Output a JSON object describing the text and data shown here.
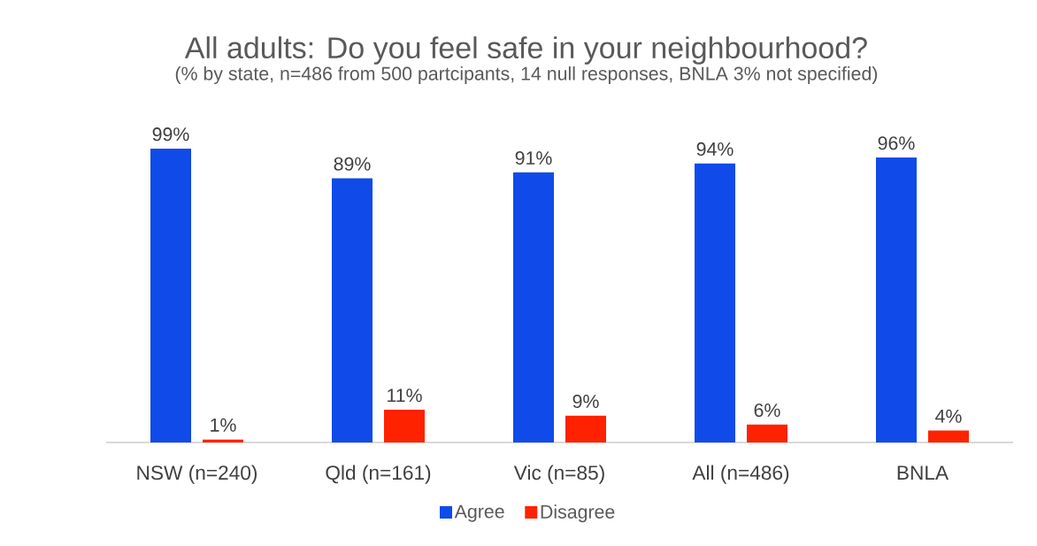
{
  "chart_data": {
    "type": "bar",
    "title": "All adults: Do you feel safe in your neighbourhood?",
    "subtitle": "(% by state, n=486 from 500 partcipants, 14 null responses, BNLA 3% not specified)",
    "categories": [
      "NSW (n=240)",
      "Qld (n=161)",
      "Vic (n=85)",
      "All (n=486)",
      "BNLA"
    ],
    "series": [
      {
        "name": "Agree",
        "color": "#104ae8",
        "values": [
          99,
          89,
          91,
          94,
          96
        ],
        "value_labels": [
          "99%",
          "89%",
          "91%",
          "94%",
          "96%"
        ]
      },
      {
        "name": "Disagree",
        "color": "#ff2200",
        "values": [
          1,
          11,
          9,
          6,
          4
        ],
        "value_labels": [
          "1%",
          "11%",
          "9%",
          "6%",
          "4%"
        ]
      }
    ],
    "legend": "bottom",
    "tick_labels": "x"
  }
}
